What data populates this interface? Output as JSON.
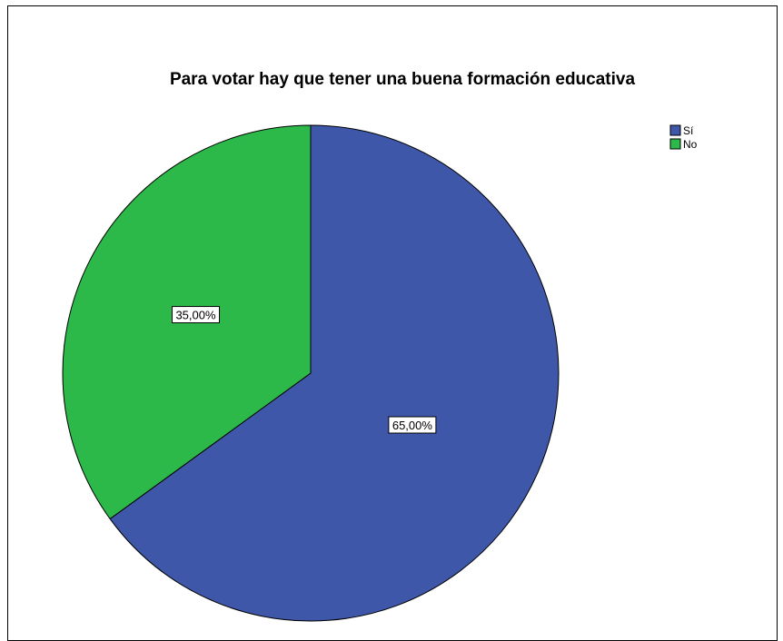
{
  "chart_data": {
    "type": "pie",
    "title": "Para votar hay que tener una buena formación educativa",
    "categories": [
      "Sí",
      "No"
    ],
    "values": [
      65,
      35
    ],
    "data_labels": [
      "65,00%",
      "35,00%"
    ],
    "colors": [
      "#3F57A8",
      "#2DB84A"
    ],
    "legend_position": "top-right"
  }
}
